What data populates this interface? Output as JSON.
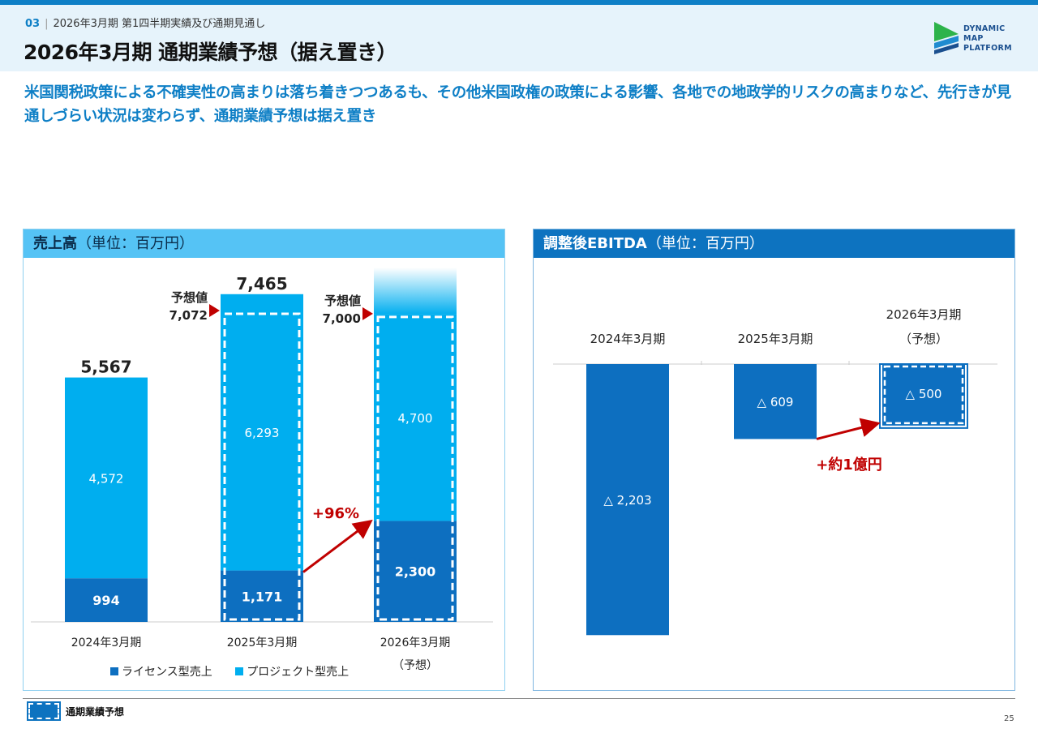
{
  "header": {
    "section_number": "03",
    "section_title": "2026年3月期 第1四半期実績及び通期見通し",
    "title": "2026年3月期 通期業績予想（据え置き）"
  },
  "logo": {
    "line1": "DYNAMIC",
    "line2": "MAP",
    "line3": "PLATFORM"
  },
  "lead": "米国関税政策による不確実性の高まりは落ち着きつつあるも、その他米国政権の政策による影響、各地での地政学的リスクの高まりなど、先行きが見通しづらい状況は変わらず、通期業績予想は据え置き",
  "colors": {
    "license": "#0d6fc0",
    "project": "#00aeef",
    "arrow": "#c00000",
    "header_bg": "#e6f3fb",
    "left_panel_head": "#55c3f5",
    "right_panel_head": "#0d73c0"
  },
  "chart_data": [
    {
      "type": "bar",
      "stacked": true,
      "title_main": "売上高",
      "title_unit": "（単位：百万円）",
      "categories": [
        "2024年3月期",
        "2025年3月期",
        "2026年3月期"
      ],
      "category_sub": [
        "",
        "",
        "（予想）"
      ],
      "series": [
        {
          "name": "ライセンス型売上",
          "values": [
            994,
            1171,
            2300
          ]
        },
        {
          "name": "プロジェクト型売上",
          "values": [
            4572,
            6293,
            4700
          ]
        }
      ],
      "totals": [
        "5,567",
        "7,465",
        ""
      ],
      "value_labels": {
        "license": [
          "994",
          "1,171",
          "2,300"
        ],
        "project": [
          "4,572",
          "6,293",
          "4,700"
        ]
      },
      "forecast_markers": [
        {
          "category": "2025年3月期",
          "label": "予想値",
          "value": "7,072",
          "amount": 7072
        },
        {
          "category": "2026年3月期",
          "label": "予想値",
          "value": "7,000",
          "amount": 7000
        }
      ],
      "growth_annotation": "+96%",
      "ylim": [
        0,
        7700
      ]
    },
    {
      "type": "bar",
      "title_main": "調整後EBITDA",
      "title_unit": "（単位：百万円）",
      "categories": [
        "2024年3月期",
        "2025年3月期",
        "2026年3月期"
      ],
      "category_sub": [
        "",
        "",
        "（予想）"
      ],
      "values": [
        -2203,
        -609,
        -500
      ],
      "value_labels": [
        "△ 2,203",
        "△ 609",
        "△ 500"
      ],
      "forecast_index": 2,
      "growth_annotation": "+約1億円",
      "ylim": [
        -2300,
        0
      ]
    }
  ],
  "footer": {
    "legend_label": "通期業績予想",
    "page_number": "25"
  }
}
